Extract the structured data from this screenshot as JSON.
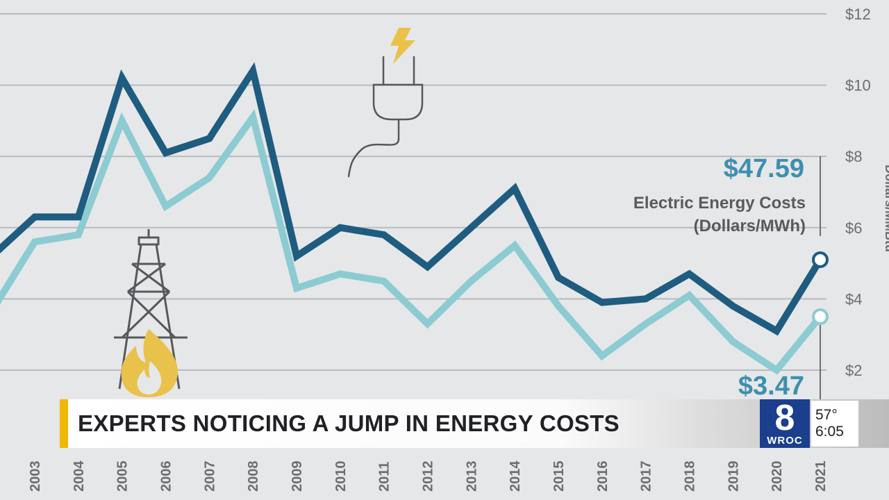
{
  "chart_data": {
    "type": "line",
    "x": [
      "2003",
      "2004",
      "2005",
      "2006",
      "2007",
      "2008",
      "2009",
      "2010",
      "2011",
      "2012",
      "2013",
      "2014",
      "2015",
      "2016",
      "2017",
      "2018",
      "2019",
      "2020",
      "2021"
    ],
    "series": [
      {
        "color": "#1e5c80",
        "values": [
          6.3,
          6.3,
          10.2,
          8.1,
          8.5,
          10.4,
          5.2,
          6.0,
          5.8,
          4.9,
          6.0,
          7.1,
          4.6,
          3.9,
          4.0,
          4.7,
          3.8,
          3.1,
          5.1
        ]
      },
      {
        "color": "#8ccbd2",
        "values": [
          5.6,
          5.8,
          9.0,
          6.6,
          7.4,
          9.1,
          4.3,
          4.7,
          4.5,
          3.3,
          4.5,
          5.5,
          3.8,
          2.4,
          3.3,
          4.1,
          2.8,
          2.0,
          3.5
        ]
      }
    ],
    "right_axis": {
      "ticks": [
        "$12",
        "$10",
        "$8",
        "$6",
        "$4",
        "$2"
      ],
      "ylim": [
        0,
        12
      ],
      "label": "Dollars/MMBtu"
    },
    "annotations": {
      "electric_value": "$47.59",
      "electric_label_line1": "Electric Energy Costs",
      "electric_label_line2": "(Dollars/MWh)",
      "gas_value": "$3.47"
    },
    "grid": true
  },
  "broadcast": {
    "headline": "EXPERTS NOTICING A JUMP IN ENERGY COSTS",
    "logo_number": "8",
    "logo_call": "WROC",
    "temperature": "57°",
    "time": "6:05"
  },
  "icons": [
    "plug-icon",
    "lightning-bolt-icon",
    "oil-derrick-icon",
    "flame-icon"
  ],
  "colors": {
    "accent": "#f2b705",
    "logo": "#1b3e8d"
  }
}
